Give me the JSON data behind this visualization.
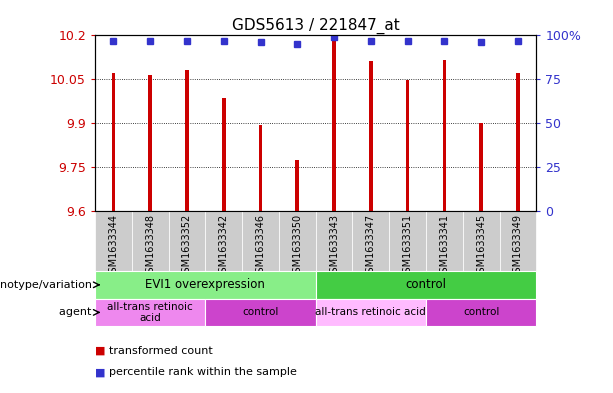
{
  "title": "GDS5613 / 221847_at",
  "samples": [
    "GSM1633344",
    "GSM1633348",
    "GSM1633352",
    "GSM1633342",
    "GSM1633346",
    "GSM1633350",
    "GSM1633343",
    "GSM1633347",
    "GSM1633351",
    "GSM1633341",
    "GSM1633345",
    "GSM1633349"
  ],
  "transformed_count": [
    10.07,
    10.065,
    10.08,
    9.985,
    9.895,
    9.775,
    10.195,
    10.112,
    10.046,
    10.115,
    9.9,
    10.073
  ],
  "percentile_rank": [
    97,
    97,
    97,
    97,
    96,
    95,
    99,
    97,
    97,
    97,
    96,
    97
  ],
  "ymin": 9.6,
  "ymax": 10.2,
  "yticks": [
    9.6,
    9.75,
    9.9,
    10.05,
    10.2
  ],
  "ytick_labels": [
    "9.6",
    "9.75",
    "9.9",
    "10.05",
    "10.2"
  ],
  "y2ticks": [
    0,
    25,
    50,
    75,
    100
  ],
  "y2tick_labels": [
    "0",
    "25",
    "50",
    "75",
    "100%"
  ],
  "bar_color": "#cc0000",
  "dot_color": "#3333cc",
  "bar_bottom": 9.6,
  "bar_width": 0.1,
  "genotype_groups": [
    {
      "label": "EVI1 overexpression",
      "start": 0,
      "end": 6,
      "color": "#88ee88"
    },
    {
      "label": "control",
      "start": 6,
      "end": 12,
      "color": "#44cc44"
    }
  ],
  "agent_groups": [
    {
      "label": "all-trans retinoic\nacid",
      "start": 0,
      "end": 3,
      "color": "#ee88ee"
    },
    {
      "label": "control",
      "start": 3,
      "end": 6,
      "color": "#cc44cc"
    },
    {
      "label": "all-trans retinoic acid",
      "start": 6,
      "end": 9,
      "color": "#ffbbff"
    },
    {
      "label": "control",
      "start": 9,
      "end": 12,
      "color": "#cc44cc"
    }
  ],
  "bar_color_legend": "#cc0000",
  "dot_color_legend": "#3333cc",
  "tick_bg": "#cccccc",
  "plot_bg": "#ffffff"
}
